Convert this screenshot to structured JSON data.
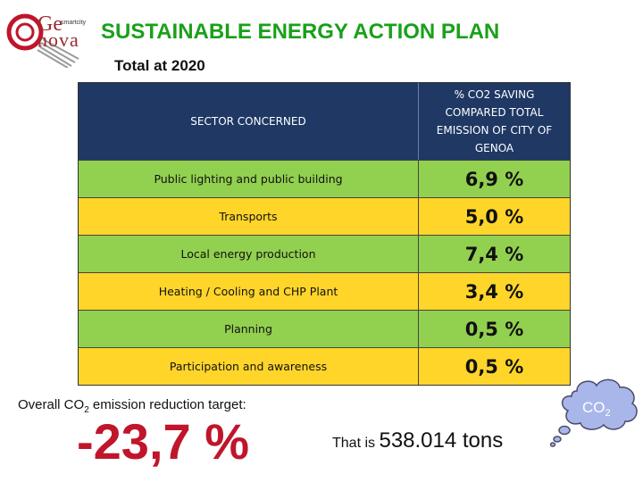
{
  "logo": {
    "ge": "Ge",
    "small": "smartcity",
    "nova": "nova"
  },
  "title": "SUSTAINABLE ENERGY ACTION PLAN",
  "subtitle": "Total at 2020",
  "table": {
    "header_sector": "SECTOR CONCERNED",
    "header_saving_line1": "% CO2  SAVING",
    "header_saving_line2": "COMPARED TOTAL",
    "header_saving_line3": "EMISSION OF CITY OF",
    "header_saving_line4": "GENOA",
    "rows": [
      {
        "sector": "Public lighting and public building",
        "value": "6,9 %",
        "color": "#92d050"
      },
      {
        "sector": "Transports",
        "value": "5,0 %",
        "color": "#ffd52a"
      },
      {
        "sector": "Local energy production",
        "value": "7,4 %",
        "color": "#92d050"
      },
      {
        "sector": "Heating / Cooling and CHP Plant",
        "value": "3,4 %",
        "color": "#ffd52a"
      },
      {
        "sector": "Planning",
        "value": "0,5 %",
        "color": "#92d050"
      },
      {
        "sector": "Participation and awareness",
        "value": "0,5 %",
        "color": "#ffd52a"
      }
    ]
  },
  "overall": {
    "prefix": "Overall CO",
    "sub": "2",
    "suffix": " emission reduction target:"
  },
  "target": "-23,7 %",
  "that_is": {
    "label": "That is ",
    "amount": "538.014 tons"
  },
  "cloud": {
    "text": "CO",
    "sub": "2"
  }
}
